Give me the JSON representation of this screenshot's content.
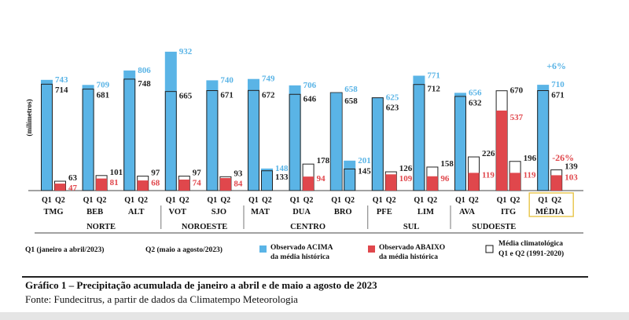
{
  "chart_data": {
    "type": "bar",
    "ylabel": "(milímetros)",
    "colors": {
      "above": "#5ab4e6",
      "below": "#e0474c",
      "clim_edge": "#222222",
      "above_text": "#5ab4e6",
      "below_text": "#e0474c",
      "clim_text": "#222222",
      "highlight": "#e8c547"
    },
    "categories": [
      "TMG",
      "BEB",
      "ALT",
      "VOT",
      "SJO",
      "MAT",
      "DUA",
      "BRO",
      "PFE",
      "LIM",
      "AVA",
      "ITG",
      "MÉDIA"
    ],
    "groups": [
      {
        "name": "NORTE",
        "categories": [
          "TMG",
          "BEB",
          "ALT"
        ]
      },
      {
        "name": "NOROESTE",
        "categories": [
          "VOT",
          "SJO"
        ]
      },
      {
        "name": "CENTRO",
        "categories": [
          "MAT",
          "DUA",
          "BRO"
        ]
      },
      {
        "name": "SUL",
        "categories": [
          "PFE",
          "LIM"
        ]
      },
      {
        "name": "SUDOESTE",
        "categories": [
          "AVA",
          "ITG"
        ]
      }
    ],
    "period_labels": [
      "Q1",
      "Q2"
    ],
    "stations": [
      {
        "code": "TMG",
        "q1_obs": 743,
        "q1_clim": 714,
        "q1_status": "above",
        "q2_obs": 47,
        "q2_clim": 63,
        "q2_status": "below"
      },
      {
        "code": "BEB",
        "q1_obs": 709,
        "q1_clim": 681,
        "q1_status": "above",
        "q2_obs": 81,
        "q2_clim": 101,
        "q2_status": "below"
      },
      {
        "code": "ALT",
        "q1_obs": 806,
        "q1_clim": 748,
        "q1_status": "above",
        "q2_obs": 68,
        "q2_clim": 97,
        "q2_status": "below"
      },
      {
        "code": "VOT",
        "q1_obs": 932,
        "q1_clim": 665,
        "q1_status": "above",
        "q2_obs": 74,
        "q2_clim": 97,
        "q2_status": "below"
      },
      {
        "code": "SJO",
        "q1_obs": 740,
        "q1_clim": 671,
        "q1_status": "above",
        "q2_obs": 84,
        "q2_clim": 93,
        "q2_status": "below"
      },
      {
        "code": "MAT",
        "q1_obs": 749,
        "q1_clim": 672,
        "q1_status": "above",
        "q2_obs": 148,
        "q2_clim": 133,
        "q2_status": "above"
      },
      {
        "code": "DUA",
        "q1_obs": 706,
        "q1_clim": 646,
        "q1_status": "above",
        "q2_obs": 94,
        "q2_clim": 178,
        "q2_status": "below"
      },
      {
        "code": "BRO",
        "q1_obs": 658,
        "q1_clim": 658,
        "q1_status": "equal",
        "q2_obs": 201,
        "q2_clim": 145,
        "q2_status": "above"
      },
      {
        "code": "PFE",
        "q1_obs": 625,
        "q1_clim": 623,
        "q1_status": "above",
        "q2_obs": 109,
        "q2_clim": 126,
        "q2_status": "below"
      },
      {
        "code": "LIM",
        "q1_obs": 771,
        "q1_clim": 712,
        "q1_status": "above",
        "q2_obs": 96,
        "q2_clim": 158,
        "q2_status": "below"
      },
      {
        "code": "AVA",
        "q1_obs": 656,
        "q1_clim": 632,
        "q1_status": "above",
        "q2_obs": 119,
        "q2_clim": 226,
        "q2_status": "below"
      },
      {
        "code": "ITG",
        "q1_obs": 537,
        "q1_clim": 670,
        "q1_status": "below",
        "q2_obs": 119,
        "q2_clim": 196,
        "q2_status": "below"
      },
      {
        "code": "MÉDIA",
        "q1_obs": 710,
        "q1_clim": 671,
        "q1_status": "above",
        "q2_obs": 103,
        "q2_clim": 139,
        "q2_status": "below",
        "highlight": true,
        "q1_change": "+6%",
        "q2_change": "-26%"
      }
    ],
    "legend": {
      "q1_note": "Q1 (janeiro a abril/2023)",
      "q2_note": "Q2 (maio a agosto/2023)",
      "above": [
        "Observado ACIMA",
        "da média histórica"
      ],
      "below": [
        "Observado ABAIXO",
        "da média histórica"
      ],
      "clim": [
        "Média climatológica",
        "Q1 e Q2 (1991-2020)"
      ]
    }
  },
  "caption": {
    "title": "Gráfico 1 – Precipitação acumulada de janeiro a abril e de maio a agosto de 2023",
    "source": "Fonte: Fundecitrus, a partir de dados da Climatempo Meteorologia"
  }
}
